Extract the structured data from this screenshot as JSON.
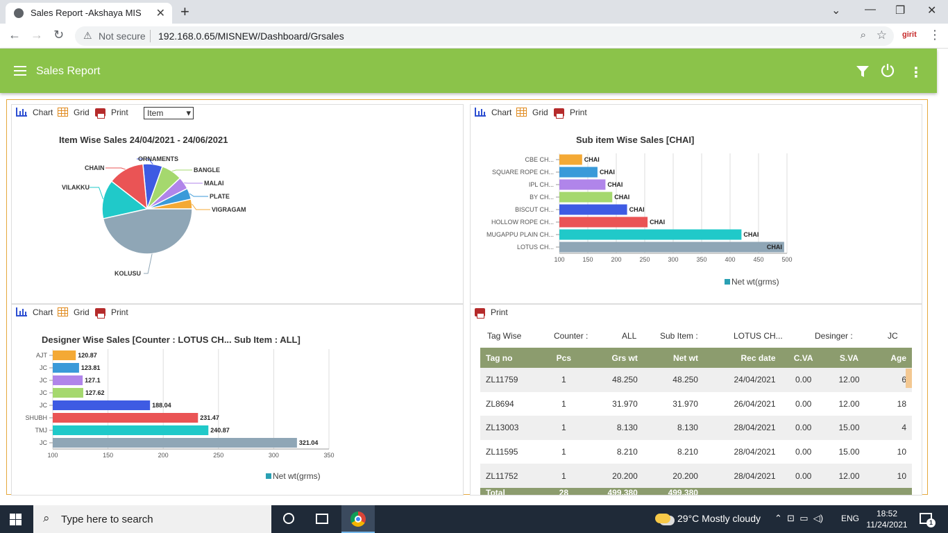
{
  "browser": {
    "tab_title": "Sales Report -Akshaya MIS",
    "security_label": "Not secure",
    "url": "192.168.0.65/MISNEW/Dashboard/Grsales",
    "extension_label": "girit"
  },
  "app": {
    "title": "Sales Report",
    "colors": {
      "header": "#8bc34a",
      "table_header": "#8c9c6e"
    }
  },
  "toolbar": {
    "chart": "Chart",
    "grid": "Grid",
    "print": "Print",
    "select_value": "Item"
  },
  "item_chart": {
    "title": "Item Wise Sales 24/04/2021 - 24/06/2021",
    "chart_data": {
      "type": "pie",
      "labels": [
        "VIGRAGAM",
        "PLATE",
        "MALAI",
        "BANGLE",
        "ORNAMENTS",
        "CHAIN",
        "VILAKKU",
        "KOLUSU"
      ],
      "values": [
        3.5,
        4,
        4.5,
        7.5,
        7,
        13,
        14,
        46.5
      ],
      "colors": [
        "#f4a935",
        "#3a9ad9",
        "#b085ea",
        "#a5d86e",
        "#3e5be3",
        "#ea5455",
        "#20c9c9",
        "#8fa6b6"
      ]
    }
  },
  "subitem_chart": {
    "title": "Sub item Wise Sales [CHAI]",
    "legend": "Net wt(grms)",
    "chart_data": {
      "type": "bar",
      "categories": [
        "CBE CH...",
        "SQUARE ROPE CH...",
        "IPL CH...",
        "BY CH...",
        "BISCUT CH...",
        "HOLLOW ROPE CH...",
        "MUGAPPU PLAIN CH...",
        "LOTUS CH..."
      ],
      "values": [
        140,
        167,
        181,
        193,
        219,
        255,
        420,
        495
      ],
      "data_labels": [
        "CHAI",
        "CHAI",
        "CHAI",
        "CHAI",
        "CHAI",
        "CHAI",
        "CHAI",
        "CHAI"
      ],
      "colors": [
        "#f4a935",
        "#3a9ad9",
        "#b085ea",
        "#a5d86e",
        "#3e5be3",
        "#ea5455",
        "#20c9c9",
        "#8fa6b6"
      ],
      "xlim": [
        100,
        500
      ],
      "ticks": [
        "100",
        "150",
        "200",
        "250",
        "300",
        "350",
        "400",
        "450",
        "500"
      ]
    }
  },
  "designer_chart": {
    "title": "Designer Wise Sales [Counter : LOTUS CH...  Sub Item : ALL]",
    "legend": "Net wt(grms)",
    "chart_data": {
      "type": "bar",
      "categories": [
        "AJT",
        "JC",
        "JC",
        "JC",
        "JC",
        "SHUBH",
        "TMJ",
        "JC"
      ],
      "values": [
        120.87,
        123.81,
        127.1,
        127.62,
        188.04,
        231.47,
        240.87,
        321.04
      ],
      "data_labels": [
        "120.87",
        "123.81",
        "127.1",
        "127.62",
        "188.04",
        "231.47",
        "240.87",
        "321.04"
      ],
      "colors": [
        "#f4a935",
        "#3a9ad9",
        "#b085ea",
        "#a5d86e",
        "#3e5be3",
        "#ea5455",
        "#20c9c9",
        "#8fa6b6"
      ],
      "xlim": [
        100,
        350
      ],
      "ticks": [
        "100",
        "150",
        "200",
        "250",
        "300",
        "350"
      ]
    }
  },
  "tag_panel": {
    "print": "Print",
    "filters": {
      "tag_wise": "Tag Wise",
      "counter_label": "Counter :",
      "counter_value": "ALL",
      "subitem_label": "Sub Item :",
      "subitem_value": "LOTUS CH...",
      "designer_label": "Desinger :",
      "designer_value": "JC"
    },
    "headers": [
      "Tag no",
      "Pcs",
      "Grs wt",
      "Net wt",
      "Rec date",
      "C.VA",
      "S.VA",
      "Age"
    ],
    "rows": [
      [
        "ZL11759",
        "1",
        "48.250",
        "48.250",
        "24/04/2021",
        "0.00",
        "12.00",
        "6"
      ],
      [
        "ZL8694",
        "1",
        "31.970",
        "31.970",
        "26/04/2021",
        "0.00",
        "12.00",
        "18"
      ],
      [
        "ZL13003",
        "1",
        "8.130",
        "8.130",
        "28/04/2021",
        "0.00",
        "15.00",
        "4"
      ],
      [
        "ZL11595",
        "1",
        "8.210",
        "8.210",
        "28/04/2021",
        "0.00",
        "15.00",
        "10"
      ],
      [
        "ZL11752",
        "1",
        "20.200",
        "20.200",
        "28/04/2021",
        "0.00",
        "12.00",
        "10"
      ]
    ],
    "footer": [
      "Total",
      "28",
      "499.380",
      "499.380",
      "",
      "",
      "",
      ""
    ]
  },
  "taskbar": {
    "search_placeholder": "Type here to search",
    "weather": "29°C  Mostly cloudy",
    "language": "ENG",
    "time": "18:52",
    "date": "11/24/2021",
    "notification_count": "1"
  }
}
